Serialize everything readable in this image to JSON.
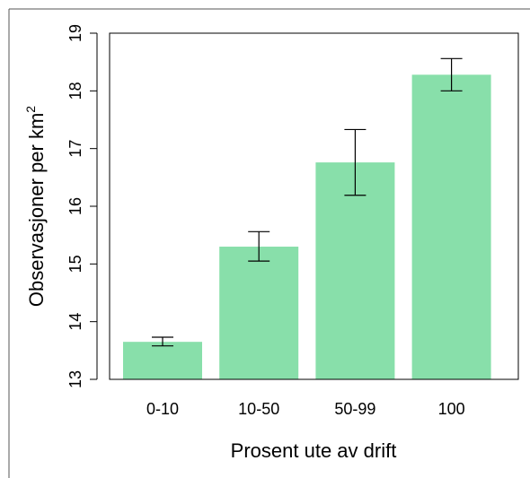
{
  "chart_data": {
    "type": "bar",
    "categories": [
      "0-10",
      "10-50",
      "50-99",
      "100"
    ],
    "values": [
      13.65,
      15.3,
      16.76,
      18.28
    ],
    "error_low": [
      13.58,
      15.05,
      16.19,
      18.0
    ],
    "error_high": [
      13.73,
      15.56,
      17.33,
      18.56
    ],
    "title": "",
    "xlabel": "Prosent ute av drift",
    "ylabel": "Observasjoner per km",
    "ylabel_superscript": "2",
    "ylim": [
      13,
      19
    ],
    "yticks": [
      "13",
      "14",
      "15",
      "16",
      "17",
      "18",
      "19"
    ],
    "bar_color": "#88dfaa",
    "grid": false,
    "legend": "none"
  }
}
